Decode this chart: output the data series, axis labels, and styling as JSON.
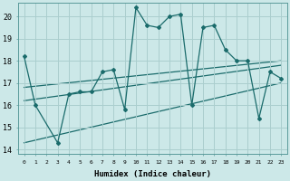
{
  "xlabel": "Humidex (Indice chaleur)",
  "bg_color": "#cce8e8",
  "grid_color": "#aacece",
  "line_color": "#1a6b6b",
  "xlim": [
    -0.5,
    23.5
  ],
  "ylim": [
    13.8,
    20.6
  ],
  "xticks": [
    0,
    1,
    2,
    3,
    4,
    5,
    6,
    7,
    8,
    9,
    10,
    11,
    12,
    13,
    14,
    15,
    16,
    17,
    18,
    19,
    20,
    21,
    22,
    23
  ],
  "yticks": [
    14,
    15,
    16,
    17,
    18,
    19,
    20
  ],
  "series": [
    [
      0,
      18.2
    ],
    [
      1,
      16.0
    ],
    [
      3,
      14.3
    ],
    [
      4,
      16.5
    ],
    [
      5,
      16.6
    ],
    [
      6,
      16.6
    ],
    [
      7,
      17.5
    ],
    [
      8,
      17.6
    ],
    [
      9,
      15.8
    ],
    [
      10,
      20.4
    ],
    [
      11,
      19.6
    ],
    [
      12,
      19.5
    ],
    [
      13,
      20.0
    ],
    [
      14,
      20.1
    ],
    [
      15,
      16.0
    ],
    [
      16,
      19.5
    ],
    [
      17,
      19.6
    ],
    [
      18,
      18.5
    ],
    [
      19,
      18.0
    ],
    [
      20,
      18.0
    ],
    [
      21,
      15.4
    ],
    [
      22,
      17.5
    ],
    [
      23,
      17.2
    ]
  ],
  "regression_lines": [
    {
      "x": [
        0,
        23
      ],
      "y": [
        16.8,
        18.0
      ]
    },
    {
      "x": [
        0,
        23
      ],
      "y": [
        16.2,
        17.8
      ]
    },
    {
      "x": [
        0,
        23
      ],
      "y": [
        14.3,
        17.0
      ]
    }
  ]
}
